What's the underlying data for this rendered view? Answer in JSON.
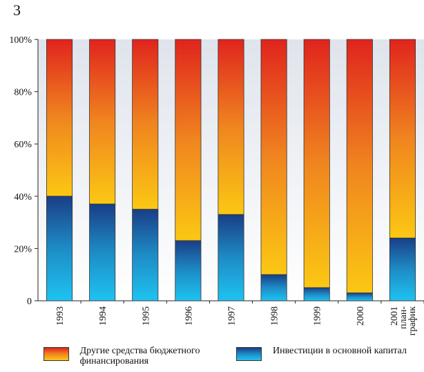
{
  "figure_number": "3",
  "chart_data": {
    "type": "bar",
    "stacked": true,
    "normalized_percent": true,
    "categories": [
      "1993",
      "1994",
      "1995",
      "1996",
      "1997",
      "1998",
      "1999",
      "2000",
      "2001 план-график"
    ],
    "category_lines": [
      [
        "1993"
      ],
      [
        "1994"
      ],
      [
        "1995"
      ],
      [
        "1996"
      ],
      [
        "1997"
      ],
      [
        "1998"
      ],
      [
        "1999"
      ],
      [
        "2000"
      ],
      [
        "2001",
        "план-",
        "график"
      ]
    ],
    "series": [
      {
        "name": "Инвестиции в основной капитал",
        "values": [
          40,
          37,
          35,
          23,
          33,
          10,
          5,
          3,
          24
        ],
        "gradient": [
          "#1a3e86",
          "#1ec3f1"
        ]
      },
      {
        "name": "Другие средства бюджетного финансирования",
        "values": [
          60,
          63,
          65,
          77,
          67,
          90,
          95,
          97,
          76
        ],
        "gradient": [
          "#e0241e",
          "#fbc813"
        ]
      }
    ],
    "ylim": [
      0,
      100
    ],
    "yticks": [
      0,
      20,
      40,
      60,
      80,
      100
    ],
    "ytick_labels": [
      "0",
      "20%",
      "40%",
      "60%",
      "80%",
      "100%"
    ],
    "background_gradient": [
      "#dfe4ec",
      "#ffffff"
    ],
    "legend_position": "bottom",
    "xlabel": "",
    "ylabel": ""
  },
  "legend": {
    "other_label": "Другие средства бюджетного финансирования",
    "invest_label": "Инвестиции в основной капитал"
  }
}
